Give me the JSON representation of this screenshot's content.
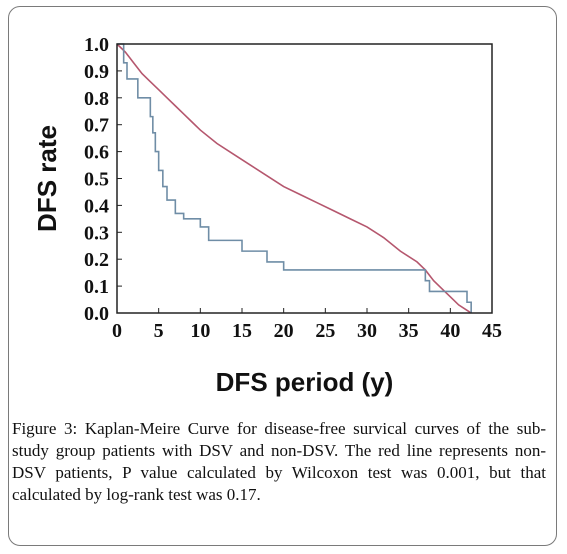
{
  "chart_data": {
    "type": "line",
    "title": "",
    "xlabel": "DFS period (y)",
    "ylabel": "DFS rate",
    "xlim": [
      0,
      45
    ],
    "ylim": [
      0,
      1.0
    ],
    "xticks": [
      "0",
      "5",
      "10",
      "15",
      "20",
      "25",
      "30",
      "35",
      "40",
      "45"
    ],
    "yticks": [
      "0.0",
      "0.1",
      "0.2",
      "0.3",
      "0.4",
      "0.5",
      "0.6",
      "0.7",
      "0.8",
      "0.9",
      "1.0"
    ],
    "grid": false,
    "legend": "none",
    "series": [
      {
        "color": "#b5576e",
        "step": false,
        "points": [
          [
            0,
            1.0
          ],
          [
            1,
            0.97
          ],
          [
            2,
            0.93
          ],
          [
            3,
            0.89
          ],
          [
            4,
            0.86
          ],
          [
            5,
            0.83
          ],
          [
            6,
            0.8
          ],
          [
            7,
            0.77
          ],
          [
            8,
            0.74
          ],
          [
            9,
            0.71
          ],
          [
            10,
            0.68
          ],
          [
            12,
            0.63
          ],
          [
            14,
            0.59
          ],
          [
            16,
            0.55
          ],
          [
            18,
            0.51
          ],
          [
            20,
            0.47
          ],
          [
            22,
            0.44
          ],
          [
            24,
            0.41
          ],
          [
            26,
            0.38
          ],
          [
            28,
            0.35
          ],
          [
            30,
            0.32
          ],
          [
            32,
            0.28
          ],
          [
            34,
            0.23
          ],
          [
            36,
            0.19
          ],
          [
            37,
            0.16
          ],
          [
            38,
            0.12
          ],
          [
            39,
            0.09
          ],
          [
            40,
            0.06
          ],
          [
            41,
            0.03
          ],
          [
            42,
            0.01
          ],
          [
            42.5,
            0.0
          ]
        ]
      },
      {
        "color": "#6f8da6",
        "step": true,
        "points": [
          [
            0,
            1.0
          ],
          [
            0.8,
            0.93
          ],
          [
            1.2,
            0.87
          ],
          [
            2.5,
            0.8
          ],
          [
            4,
            0.73
          ],
          [
            4.3,
            0.67
          ],
          [
            4.6,
            0.6
          ],
          [
            5,
            0.53
          ],
          [
            5.5,
            0.47
          ],
          [
            6,
            0.42
          ],
          [
            7,
            0.37
          ],
          [
            8,
            0.35
          ],
          [
            10,
            0.32
          ],
          [
            11,
            0.27
          ],
          [
            15,
            0.23
          ],
          [
            18,
            0.19
          ],
          [
            20,
            0.16
          ],
          [
            37,
            0.12
          ],
          [
            37.5,
            0.08
          ],
          [
            42,
            0.04
          ],
          [
            42.5,
            0.0
          ]
        ]
      }
    ]
  },
  "caption": {
    "label": "Figure 3",
    "text": ": Kaplan-Meire Curve for disease-free survical curves of the sub-study group patients with DSV and non-DSV. The red line represents non-DSV patients, P value calculated by Wilcoxon test was 0.001, but that calculated by log-rank test was 0.17."
  }
}
